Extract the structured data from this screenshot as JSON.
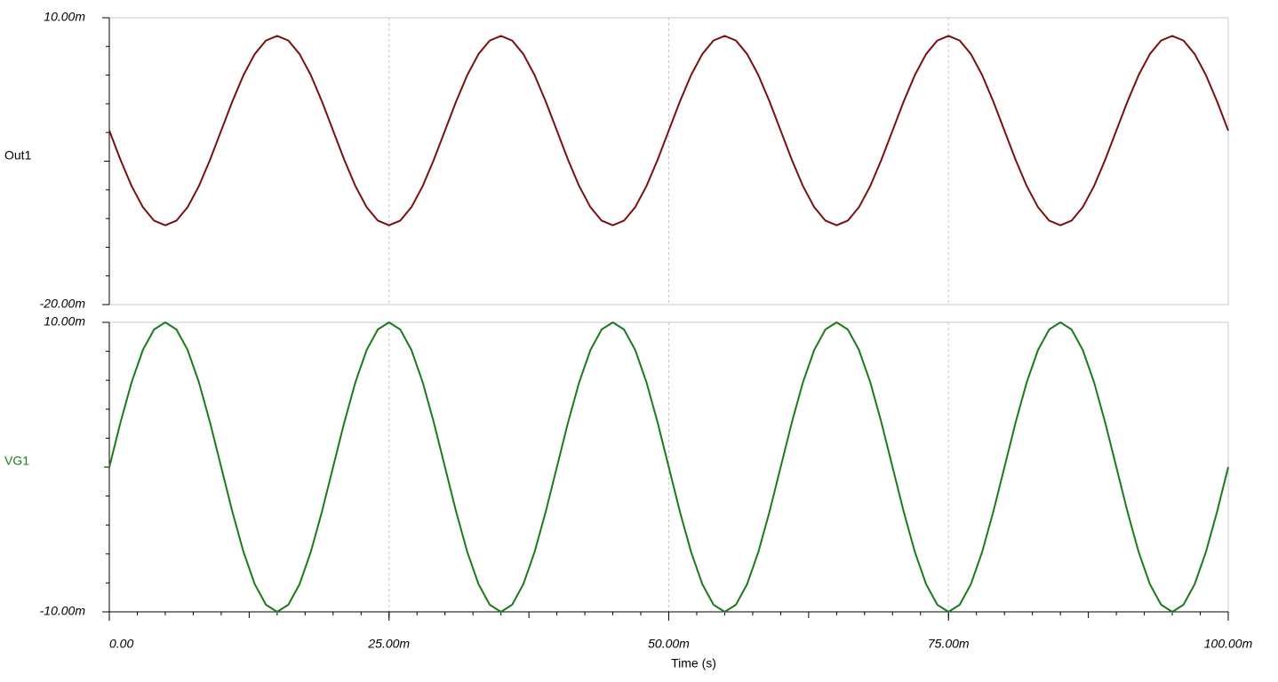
{
  "chart_data": [
    {
      "type": "line",
      "x": [
        0,
        0.001,
        0.002,
        0.003,
        0.004,
        0.005,
        0.006,
        0.007,
        0.008,
        0.009,
        0.01,
        0.011,
        0.012,
        0.013,
        0.014,
        0.015,
        0.016,
        0.017,
        0.018,
        0.019,
        0.02,
        0.021,
        0.022,
        0.023,
        0.024,
        0.025,
        0.026,
        0.027,
        0.028,
        0.029,
        0.03,
        0.031,
        0.032,
        0.033,
        0.034,
        0.035,
        0.036,
        0.037,
        0.038,
        0.039,
        0.04,
        0.041,
        0.042,
        0.043,
        0.044,
        0.045,
        0.046,
        0.047,
        0.048,
        0.049,
        0.05,
        0.051,
        0.052,
        0.053,
        0.054,
        0.055,
        0.056,
        0.057,
        0.058,
        0.059,
        0.06,
        0.061,
        0.062,
        0.063,
        0.064,
        0.065,
        0.066,
        0.067,
        0.068,
        0.069,
        0.07,
        0.071,
        0.072,
        0.073,
        0.074,
        0.075,
        0.076,
        0.077,
        0.078,
        0.079,
        0.08,
        0.081,
        0.082,
        0.083,
        0.084,
        0.085,
        0.086,
        0.087,
        0.088,
        0.089,
        0.09,
        0.091,
        0.092,
        0.093,
        0.094,
        0.095,
        0.096,
        0.097,
        0.098,
        0.099,
        0.1
      ],
      "series": [
        {
          "name": "Out1",
          "color": "#7a0f0f",
          "values": [
            -0.0018,
            -0.00486,
            -0.00762,
            -0.00981,
            -0.01122,
            -0.0117,
            -0.01122,
            -0.00981,
            -0.00762,
            -0.00486,
            -0.0018,
            0.00126,
            0.00402,
            0.00621,
            0.00762,
            0.0081,
            0.00762,
            0.00621,
            0.00402,
            0.00126,
            -0.0018,
            -0.00486,
            -0.00762,
            -0.00981,
            -0.01122,
            -0.0117,
            -0.01122,
            -0.00981,
            -0.00762,
            -0.00486,
            -0.0018,
            0.00126,
            0.00402,
            0.00621,
            0.00762,
            0.0081,
            0.00762,
            0.00621,
            0.00402,
            0.00126,
            -0.0018,
            -0.00486,
            -0.00762,
            -0.00981,
            -0.01122,
            -0.0117,
            -0.01122,
            -0.00981,
            -0.00762,
            -0.00486,
            -0.0018,
            0.00126,
            0.00402,
            0.00621,
            0.00762,
            0.0081,
            0.00762,
            0.00621,
            0.00402,
            0.00126,
            -0.0018,
            -0.00486,
            -0.00762,
            -0.00981,
            -0.01122,
            -0.0117,
            -0.01122,
            -0.00981,
            -0.00762,
            -0.00486,
            -0.0018,
            0.00126,
            0.00402,
            0.00621,
            0.00762,
            0.0081,
            0.00762,
            0.00621,
            0.00402,
            0.00126,
            -0.0018,
            -0.00486,
            -0.00762,
            -0.00981,
            -0.01122,
            -0.0117,
            -0.01122,
            -0.00981,
            -0.00762,
            -0.00486,
            -0.0018,
            0.00126,
            0.00402,
            0.00621,
            0.00762,
            0.0081,
            0.00762,
            0.00621,
            0.00402,
            0.00126,
            -0.0018
          ]
        }
      ],
      "xlim": [
        0,
        0.1
      ],
      "xticks": [
        0,
        0.025,
        0.05,
        0.075,
        0.1
      ],
      "ylim": [
        -0.02,
        0.01
      ],
      "yticks": [
        {
          "value": -0.02,
          "label": "-20.00m"
        },
        {
          "value": 0.01,
          "label": "10.00m"
        }
      ],
      "grid": true
    },
    {
      "type": "line",
      "x": [
        0,
        0.001,
        0.002,
        0.003,
        0.004,
        0.005,
        0.006,
        0.007,
        0.008,
        0.009,
        0.01,
        0.011,
        0.012,
        0.013,
        0.014,
        0.015,
        0.016,
        0.017,
        0.018,
        0.019,
        0.02,
        0.021,
        0.022,
        0.023,
        0.024,
        0.025,
        0.026,
        0.027,
        0.028,
        0.029,
        0.03,
        0.031,
        0.032,
        0.033,
        0.034,
        0.035,
        0.036,
        0.037,
        0.038,
        0.039,
        0.04,
        0.041,
        0.042,
        0.043,
        0.044,
        0.045,
        0.046,
        0.047,
        0.048,
        0.049,
        0.05,
        0.051,
        0.052,
        0.053,
        0.054,
        0.055,
        0.056,
        0.057,
        0.058,
        0.059,
        0.06,
        0.061,
        0.062,
        0.063,
        0.064,
        0.065,
        0.066,
        0.067,
        0.068,
        0.069,
        0.07,
        0.071,
        0.072,
        0.073,
        0.074,
        0.075,
        0.076,
        0.077,
        0.078,
        0.079,
        0.08,
        0.081,
        0.082,
        0.083,
        0.084,
        0.085,
        0.086,
        0.087,
        0.088,
        0.089,
        0.09,
        0.091,
        0.092,
        0.093,
        0.094,
        0.095,
        0.096,
        0.097,
        0.098,
        0.099,
        0.1
      ],
      "series": [
        {
          "name": "VG1",
          "color": "#1c7a1c",
          "values": [
            0,
            0.00309,
            0.00588,
            0.00809,
            0.00951,
            0.01,
            0.00951,
            0.00809,
            0.00588,
            0.00309,
            0,
            -0.00309,
            -0.00588,
            -0.00809,
            -0.00951,
            -0.01,
            -0.00951,
            -0.00809,
            -0.00588,
            -0.00309,
            0,
            0.00309,
            0.00588,
            0.00809,
            0.00951,
            0.01,
            0.00951,
            0.00809,
            0.00588,
            0.00309,
            0,
            -0.00309,
            -0.00588,
            -0.00809,
            -0.00951,
            -0.01,
            -0.00951,
            -0.00809,
            -0.00588,
            -0.00309,
            0,
            0.00309,
            0.00588,
            0.00809,
            0.00951,
            0.01,
            0.00951,
            0.00809,
            0.00588,
            0.00309,
            0,
            -0.00309,
            -0.00588,
            -0.00809,
            -0.00951,
            -0.01,
            -0.00951,
            -0.00809,
            -0.00588,
            -0.00309,
            0,
            0.00309,
            0.00588,
            0.00809,
            0.00951,
            0.01,
            0.00951,
            0.00809,
            0.00588,
            0.00309,
            0,
            -0.00309,
            -0.00588,
            -0.00809,
            -0.00951,
            -0.01,
            -0.00951,
            -0.00809,
            -0.00588,
            -0.00309,
            0,
            0.00309,
            0.00588,
            0.00809,
            0.00951,
            0.01,
            0.00951,
            0.00809,
            0.00588,
            0.00309,
            0,
            -0.00309,
            -0.00588,
            -0.00809,
            -0.00951,
            -0.01,
            -0.00951,
            -0.00809,
            -0.00588,
            -0.00309,
            0
          ]
        }
      ],
      "xlim": [
        0,
        0.1
      ],
      "xticks": [
        {
          "value": 0,
          "label": "0.00"
        },
        {
          "value": 0.025,
          "label": "25.00m"
        },
        {
          "value": 0.05,
          "label": "50.00m"
        },
        {
          "value": 0.075,
          "label": "75.00m"
        },
        {
          "value": 0.1,
          "label": "100.00m"
        }
      ],
      "x_label": "Time (s)",
      "ylim": [
        -0.01,
        0.01
      ],
      "yticks": [
        {
          "value": -0.01,
          "label": "-10.00m"
        },
        {
          "value": 0.01,
          "label": "10.00m"
        }
      ],
      "grid": true
    }
  ]
}
